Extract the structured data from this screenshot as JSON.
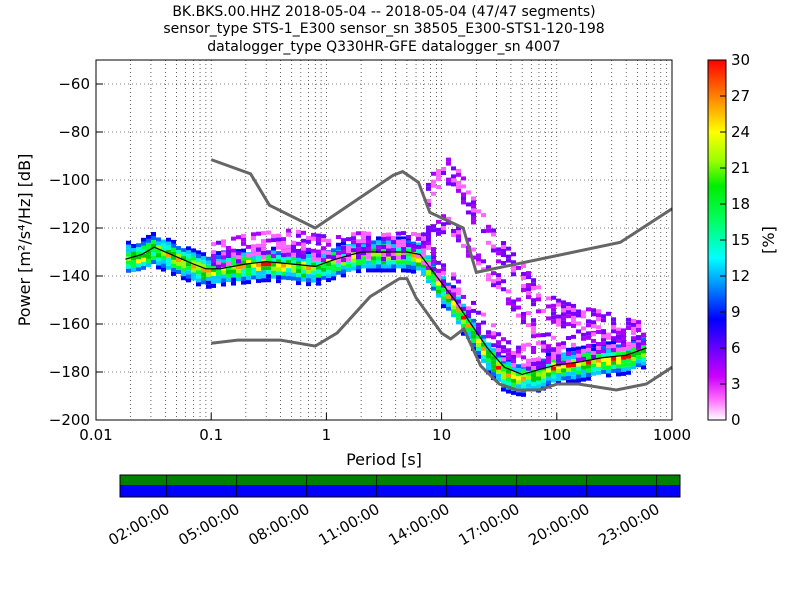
{
  "chart_data": {
    "type": "heatmap",
    "title_lines": [
      "BK.BKS.00.HHZ   2018-05-04 -- 2018-05-04  (47/47 segments)",
      "sensor_type STS-1_E300 sensor_sn 38505_E300-STS1-120-198",
      "datalogger_type Q330HR-GFE datalogger_sn 4007"
    ],
    "xlabel": "Period [s]",
    "ylabel": "Power [m²/s⁴/Hz] [dB]",
    "x_scale": "log",
    "xlim": [
      0.01,
      1000
    ],
    "ylim": [
      -200,
      -50
    ],
    "x_ticks": [
      {
        "value": 0.01,
        "label": "0.01"
      },
      {
        "value": 0.1,
        "label": "0.1"
      },
      {
        "value": 1,
        "label": "1"
      },
      {
        "value": 10,
        "label": "10"
      },
      {
        "value": 100,
        "label": "100"
      },
      {
        "value": 1000,
        "label": "1000"
      }
    ],
    "y_ticks": [
      {
        "value": -60,
        "label": "−60"
      },
      {
        "value": -80,
        "label": "−80"
      },
      {
        "value": -100,
        "label": "−100"
      },
      {
        "value": -120,
        "label": "−120"
      },
      {
        "value": -140,
        "label": "−140"
      },
      {
        "value": -160,
        "label": "−160"
      },
      {
        "value": -180,
        "label": "−180"
      },
      {
        "value": -200,
        "label": "−200"
      }
    ],
    "grid": true,
    "colorbar": {
      "label": "[%]",
      "range": [
        0,
        30
      ],
      "ticks": [
        "0",
        "3",
        "6",
        "9",
        "12",
        "15",
        "18",
        "21",
        "24",
        "27",
        "30"
      ]
    },
    "series": [
      {
        "role": "high-noise-model",
        "x": [
          0.1,
          0.22,
          0.32,
          0.8,
          3.8,
          4.6,
          6.3,
          7.9,
          15.4,
          20,
          354.8,
          1000
        ],
        "y": [
          -91.5,
          -97.4,
          -110.5,
          -120,
          -98,
          -96.5,
          -101,
          -113.5,
          -120,
          -138.5,
          -126,
          -112
        ]
      },
      {
        "role": "low-noise-model",
        "x": [
          0.1,
          0.17,
          0.4,
          0.8,
          1.24,
          2.4,
          4.3,
          5,
          6,
          10,
          12,
          15.6,
          21.9,
          31.6,
          45,
          70,
          101,
          154,
          328,
          600,
          1000
        ],
        "y": [
          -168,
          -166.7,
          -166.7,
          -169.2,
          -163.7,
          -148.6,
          -141.1,
          -141.1,
          -149,
          -163.8,
          -166.2,
          -162.1,
          -177.5,
          -185,
          -187.5,
          -187.5,
          -185,
          -185,
          -187.5,
          -185,
          -178
        ]
      },
      {
        "role": "mode",
        "x": [
          0.018,
          0.025,
          0.032,
          0.05,
          0.07,
          0.09,
          0.12,
          0.2,
          0.3,
          0.5,
          0.8,
          1.2,
          2,
          3,
          5,
          6.5,
          9,
          13,
          18,
          25,
          35,
          50,
          70,
          100,
          150,
          250,
          400,
          600
        ],
        "y": [
          -133,
          -131,
          -128,
          -132,
          -135,
          -137,
          -137,
          -135,
          -134,
          -135,
          -136,
          -133,
          -130,
          -130,
          -130,
          -131,
          -140,
          -150,
          -160,
          -170,
          -178,
          -181,
          -179,
          -177,
          -176,
          -174,
          -173,
          -170
        ]
      }
    ],
    "density": {
      "bands": [
        {
          "x": [
            0.018,
            0.025,
            0.032,
            0.05,
            0.07,
            0.09,
            0.12,
            0.2,
            0.3,
            0.5,
            0.8,
            1.2,
            2,
            3,
            5,
            6.5,
            9,
            13,
            18,
            25,
            35,
            50,
            70,
            100,
            150,
            250,
            400,
            600
          ],
          "y": [
            -133,
            -132,
            -129,
            -133,
            -136,
            -138,
            -137,
            -136,
            -135,
            -136,
            -137,
            -134,
            -131,
            -131,
            -131,
            -132,
            -142,
            -152,
            -162,
            -173,
            -181,
            -183,
            -181,
            -178,
            -177,
            -175,
            -174,
            -171
          ],
          "spread": 4,
          "level": "high"
        },
        {
          "x": [
            0.1,
            0.2,
            0.3,
            0.5,
            0.8,
            1.2,
            2,
            3,
            5,
            6.5,
            9,
            13,
            18,
            25,
            35,
            50,
            70,
            100,
            150,
            250,
            400,
            600
          ],
          "y": [
            -132,
            -128,
            -127,
            -126,
            -128,
            -129,
            -127,
            -128,
            -127,
            -128,
            -135,
            -145,
            -155,
            -163,
            -170,
            -174,
            -173,
            -172,
            -170,
            -168,
            -167,
            -164
          ],
          "spread": 3,
          "level": "low"
        },
        {
          "x": [
            7,
            8,
            9,
            10,
            12,
            15,
            20,
            30,
            50,
            70,
            100,
            150,
            250,
            400,
            600
          ],
          "y": [
            -112,
            -105,
            -100,
            -95,
            -97,
            -103,
            -115,
            -128,
            -140,
            -150,
            -155,
            -158,
            -160,
            -163,
            -165
          ],
          "spread": 3,
          "level": "low"
        },
        {
          "x": [
            6.5,
            8,
            10,
            12,
            15,
            20,
            30,
            50,
            70,
            100
          ],
          "y": [
            -128,
            -122,
            -118,
            -120,
            -125,
            -132,
            -142,
            -155,
            -165,
            -170
          ],
          "spread": 2,
          "level": "low"
        }
      ]
    }
  },
  "timeline": {
    "tick_labels": [
      "02:00:00",
      "05:00:00",
      "08:00:00",
      "11:00:00",
      "14:00:00",
      "17:00:00",
      "20:00:00",
      "23:00:00"
    ],
    "top_color": "#008000",
    "bottom_color": "#0000ff"
  }
}
